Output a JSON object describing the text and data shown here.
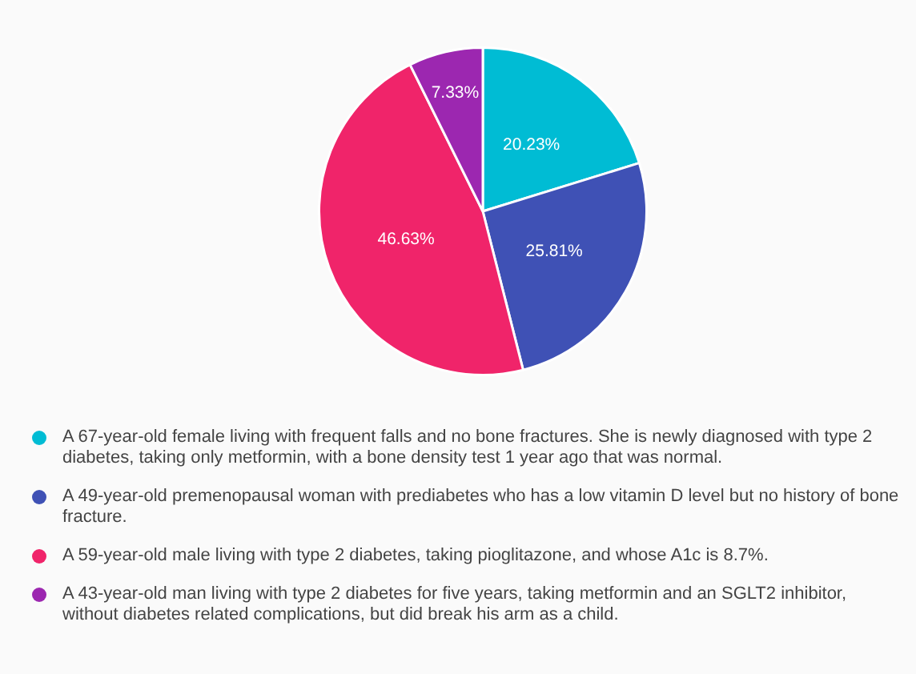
{
  "chart_data": {
    "type": "pie",
    "categories": [
      "A 67-year-old female living with frequent falls and no bone fractures. She is newly diagnosed with type 2 diabetes, taking only metformin, with a bone density test 1 year ago that was normal.",
      "A 49-year-old premenopausal woman with prediabetes who has a low vitamin D level but no history of bone fracture.",
      "A 59-year-old male living with type 2 diabetes, taking pioglitazone, and whose A1c is 8.7%.",
      "A 43-year-old man living with type 2 diabetes for five years, taking metformin and an SGLT2 inhibitor, without diabetes related complications, but did break his arm as a child."
    ],
    "values": [
      20.23,
      25.81,
      46.63,
      7.33
    ],
    "colors": [
      "#00bcd4",
      "#3f51b5",
      "#f0246a",
      "#9c27b0"
    ],
    "value_labels": [
      "20.23%",
      "25.81%",
      "46.63%",
      "7.33%"
    ],
    "legend": "bottom"
  }
}
